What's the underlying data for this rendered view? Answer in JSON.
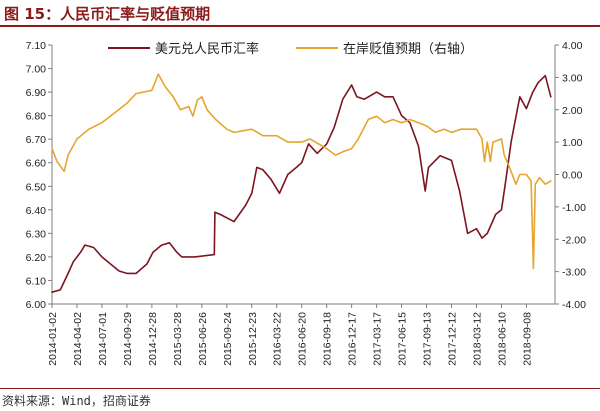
{
  "header": {
    "figure_title": "图 15：人民币汇率与贬值预期"
  },
  "footer": {
    "source": "资料来源：Wind，招商证券"
  },
  "colors": {
    "title": "#8b1a1a",
    "usdcny": "#7b1620",
    "expectation": "#e6a52e",
    "axis": "#7f7f7f"
  },
  "chart_data": {
    "type": "line",
    "title": "",
    "xlabel": "",
    "ylabel": "",
    "grid": false,
    "legend_position": "top",
    "x_ticks": [
      "2014-01-02",
      "2014-04-02",
      "2014-07-01",
      "2014-09-29",
      "2014-12-28",
      "2015-03-28",
      "2015-06-26",
      "2015-09-24",
      "2015-12-23",
      "2016-03-22",
      "2016-06-20",
      "2016-09-18",
      "2016-12-17",
      "2017-03-17",
      "2017-06-15",
      "2017-09-13",
      "2017-12-12",
      "2018-03-12",
      "2018-06-10",
      "2018-09-08"
    ],
    "y_left": {
      "min": 6.0,
      "max": 7.1,
      "ticks": [
        "6.00",
        "6.10",
        "6.20",
        "6.30",
        "6.40",
        "6.50",
        "6.60",
        "6.70",
        "6.80",
        "6.90",
        "7.00",
        "7.10"
      ]
    },
    "y_right": {
      "min": -4.0,
      "max": 4.0,
      "ticks": [
        "-4.00",
        "-3.00",
        "-2.00",
        "-1.00",
        "0.00",
        "1.00",
        "2.00",
        "3.00",
        "4.00"
      ]
    },
    "series": [
      {
        "name": "美元兑人民币汇率",
        "axis": "left",
        "color": "#7b1620",
        "points": [
          [
            "2014-01-02",
            6.05
          ],
          [
            "2014-02-01",
            6.06
          ],
          [
            "2014-03-01",
            6.13
          ],
          [
            "2014-03-20",
            6.18
          ],
          [
            "2014-04-15",
            6.22
          ],
          [
            "2014-05-01",
            6.25
          ],
          [
            "2014-06-01",
            6.24
          ],
          [
            "2014-07-01",
            6.2
          ],
          [
            "2014-08-01",
            6.17
          ],
          [
            "2014-09-01",
            6.14
          ],
          [
            "2014-09-29",
            6.13
          ],
          [
            "2014-11-01",
            6.13
          ],
          [
            "2014-12-10",
            6.17
          ],
          [
            "2015-01-01",
            6.22
          ],
          [
            "2015-02-01",
            6.25
          ],
          [
            "2015-03-01",
            6.26
          ],
          [
            "2015-03-28",
            6.22
          ],
          [
            "2015-04-15",
            6.2
          ],
          [
            "2015-06-01",
            6.2
          ],
          [
            "2015-08-10",
            6.21
          ],
          [
            "2015-08-12",
            6.39
          ],
          [
            "2015-09-01",
            6.38
          ],
          [
            "2015-10-20",
            6.35
          ],
          [
            "2015-12-01",
            6.42
          ],
          [
            "2015-12-23",
            6.47
          ],
          [
            "2016-01-10",
            6.58
          ],
          [
            "2016-02-01",
            6.57
          ],
          [
            "2016-03-01",
            6.53
          ],
          [
            "2016-04-01",
            6.47
          ],
          [
            "2016-05-01",
            6.55
          ],
          [
            "2016-06-01",
            6.58
          ],
          [
            "2016-06-20",
            6.6
          ],
          [
            "2016-07-15",
            6.68
          ],
          [
            "2016-08-15",
            6.64
          ],
          [
            "2016-09-18",
            6.68
          ],
          [
            "2016-10-15",
            6.75
          ],
          [
            "2016-11-15",
            6.87
          ],
          [
            "2016-12-17",
            6.93
          ],
          [
            "2017-01-05",
            6.88
          ],
          [
            "2017-02-01",
            6.87
          ],
          [
            "2017-03-17",
            6.9
          ],
          [
            "2017-04-15",
            6.88
          ],
          [
            "2017-05-15",
            6.88
          ],
          [
            "2017-06-15",
            6.8
          ],
          [
            "2017-07-15",
            6.77
          ],
          [
            "2017-08-15",
            6.67
          ],
          [
            "2017-09-08",
            6.48
          ],
          [
            "2017-09-20",
            6.58
          ],
          [
            "2017-11-01",
            6.63
          ],
          [
            "2017-12-12",
            6.61
          ],
          [
            "2018-01-10",
            6.48
          ],
          [
            "2018-02-08",
            6.3
          ],
          [
            "2018-03-12",
            6.32
          ],
          [
            "2018-04-01",
            6.28
          ],
          [
            "2018-04-20",
            6.3
          ],
          [
            "2018-05-20",
            6.38
          ],
          [
            "2018-06-10",
            6.4
          ],
          [
            "2018-06-25",
            6.52
          ],
          [
            "2018-07-15",
            6.69
          ],
          [
            "2018-08-15",
            6.88
          ],
          [
            "2018-09-08",
            6.83
          ],
          [
            "2018-10-01",
            6.9
          ],
          [
            "2018-10-20",
            6.94
          ],
          [
            "2018-11-15",
            6.97
          ],
          [
            "2018-12-05",
            6.88
          ]
        ]
      },
      {
        "name": "在岸贬值预期（右轴）",
        "axis": "right",
        "color": "#e6a52e",
        "points": [
          [
            "2014-01-02",
            0.8
          ],
          [
            "2014-01-20",
            0.4
          ],
          [
            "2014-02-15",
            0.1
          ],
          [
            "2014-03-01",
            0.6
          ],
          [
            "2014-04-02",
            1.1
          ],
          [
            "2014-05-15",
            1.4
          ],
          [
            "2014-07-01",
            1.6
          ],
          [
            "2014-08-15",
            1.9
          ],
          [
            "2014-09-29",
            2.2
          ],
          [
            "2014-11-01",
            2.5
          ],
          [
            "2014-12-28",
            2.6
          ],
          [
            "2015-01-20",
            3.1
          ],
          [
            "2015-02-15",
            2.7
          ],
          [
            "2015-03-15",
            2.4
          ],
          [
            "2015-04-10",
            2.0
          ],
          [
            "2015-05-10",
            2.1
          ],
          [
            "2015-05-25",
            1.8
          ],
          [
            "2015-06-10",
            2.3
          ],
          [
            "2015-06-26",
            2.4
          ],
          [
            "2015-07-15",
            2.0
          ],
          [
            "2015-08-15",
            1.7
          ],
          [
            "2015-09-24",
            1.4
          ],
          [
            "2015-10-20",
            1.3
          ],
          [
            "2015-12-23",
            1.4
          ],
          [
            "2016-02-01",
            1.2
          ],
          [
            "2016-03-22",
            1.2
          ],
          [
            "2016-05-01",
            1.0
          ],
          [
            "2016-06-20",
            1.0
          ],
          [
            "2016-07-20",
            1.1
          ],
          [
            "2016-09-18",
            0.8
          ],
          [
            "2016-10-20",
            0.6
          ],
          [
            "2016-11-15",
            0.7
          ],
          [
            "2016-12-17",
            0.8
          ],
          [
            "2017-01-10",
            1.1
          ],
          [
            "2017-02-15",
            1.7
          ],
          [
            "2017-03-17",
            1.8
          ],
          [
            "2017-04-15",
            1.6
          ],
          [
            "2017-05-15",
            1.7
          ],
          [
            "2017-06-15",
            1.6
          ],
          [
            "2017-07-15",
            1.7
          ],
          [
            "2017-08-15",
            1.6
          ],
          [
            "2017-09-13",
            1.5
          ],
          [
            "2017-10-15",
            1.3
          ],
          [
            "2017-11-15",
            1.4
          ],
          [
            "2017-12-12",
            1.3
          ],
          [
            "2018-01-15",
            1.4
          ],
          [
            "2018-03-12",
            1.4
          ],
          [
            "2018-04-01",
            1.1
          ],
          [
            "2018-04-10",
            0.4
          ],
          [
            "2018-04-20",
            1.0
          ],
          [
            "2018-05-01",
            0.4
          ],
          [
            "2018-05-10",
            1.0
          ],
          [
            "2018-06-10",
            1.1
          ],
          [
            "2018-06-20",
            0.6
          ],
          [
            "2018-07-10",
            0.2
          ],
          [
            "2018-08-01",
            -0.3
          ],
          [
            "2018-08-15",
            0.0
          ],
          [
            "2018-09-08",
            0.0
          ],
          [
            "2018-09-25",
            -0.2
          ],
          [
            "2018-10-03",
            -2.9
          ],
          [
            "2018-10-10",
            -0.3
          ],
          [
            "2018-10-25",
            -0.1
          ],
          [
            "2018-11-15",
            -0.3
          ],
          [
            "2018-12-05",
            -0.2
          ]
        ]
      }
    ]
  }
}
